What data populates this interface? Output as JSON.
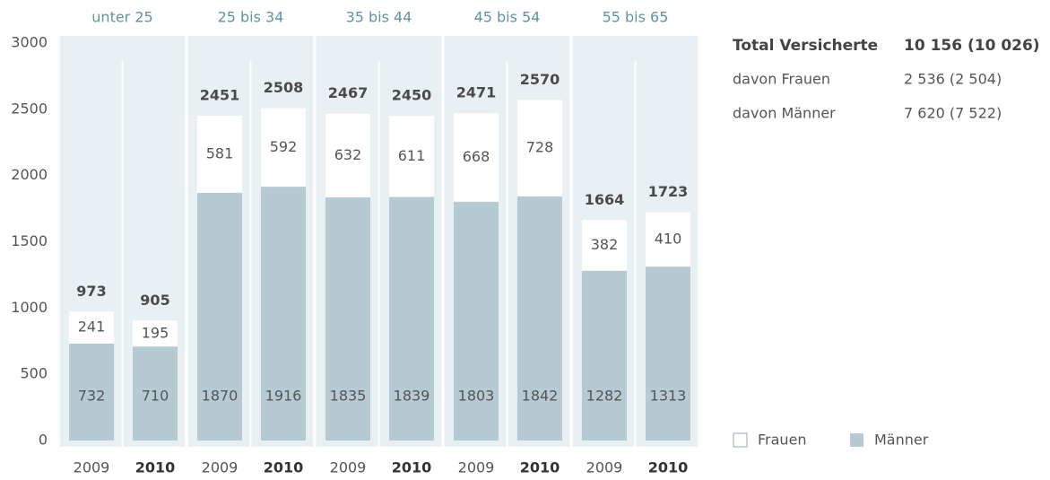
{
  "chart_data": {
    "type": "stacked_bar",
    "groups": [
      "unter 25",
      "25 bis 34",
      "35 bis 44",
      "45 bis 54",
      "55 bis 65"
    ],
    "categories": [
      "2009",
      "2010",
      "2009",
      "2010",
      "2009",
      "2010",
      "2009",
      "2010",
      "2009",
      "2010"
    ],
    "series": [
      {
        "name": "Männer",
        "color": "#b6cad4",
        "values": [
          732,
          710,
          1870,
          1916,
          1835,
          1839,
          1803,
          1842,
          1282,
          1313
        ]
      },
      {
        "name": "Frauen",
        "color": "#ffffff",
        "values": [
          241,
          195,
          581,
          592,
          632,
          611,
          668,
          728,
          382,
          410
        ]
      }
    ],
    "totals": [
      973,
      905,
      2451,
      2508,
      2467,
      2450,
      2471,
      2570,
      1664,
      1723
    ],
    "ylim": [
      0,
      3000
    ],
    "yticks": [
      0,
      500,
      1000,
      1500,
      2000,
      2500,
      3000
    ],
    "summary": [
      {
        "label": "Total Versicherte",
        "value": "10 156 (10 026)"
      },
      {
        "label": "davon Frauen",
        "value": "2 536 (2 504)"
      },
      {
        "label": "davon Männer",
        "value": "7 620 (7 522)"
      }
    ]
  }
}
